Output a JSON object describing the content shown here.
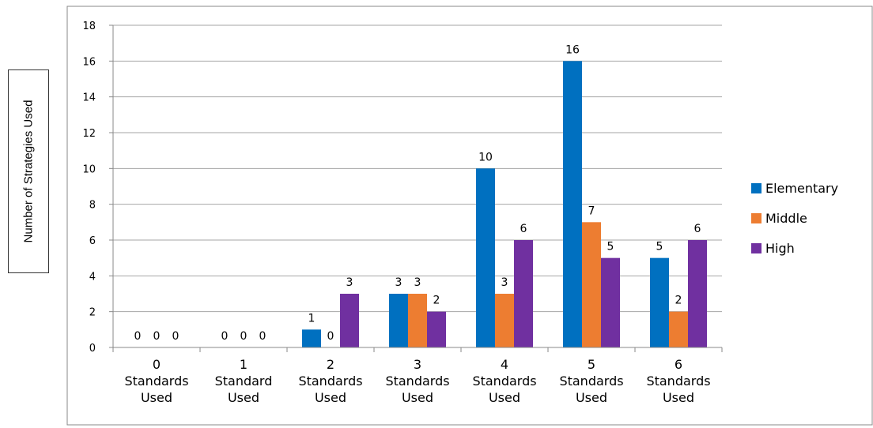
{
  "chart_data": {
    "type": "bar",
    "title": "",
    "xlabel": "",
    "ylabel": "Number of Strategies Used",
    "ylim": [
      0,
      18
    ],
    "ytick_step": 2,
    "grid": true,
    "legend_position": "right",
    "categories": [
      [
        "0",
        "Standards",
        "Used"
      ],
      [
        "1",
        "Standard",
        "Used"
      ],
      [
        "2",
        "Standards",
        "Used"
      ],
      [
        "3",
        "Standards",
        "Used"
      ],
      [
        "4",
        "Standards",
        "Used"
      ],
      [
        "5",
        "Standards",
        "Used"
      ],
      [
        "6",
        "Standards",
        "Used"
      ]
    ],
    "series": [
      {
        "name": "Elementary",
        "color": "#0070C0",
        "values": [
          0,
          0,
          1,
          3,
          10,
          16,
          5
        ]
      },
      {
        "name": "Middle",
        "color": "#ED7D31",
        "values": [
          0,
          0,
          0,
          3,
          3,
          7,
          2
        ]
      },
      {
        "name": "High",
        "color": "#7030A0",
        "values": [
          0,
          0,
          3,
          2,
          6,
          5,
          6
        ]
      }
    ]
  }
}
